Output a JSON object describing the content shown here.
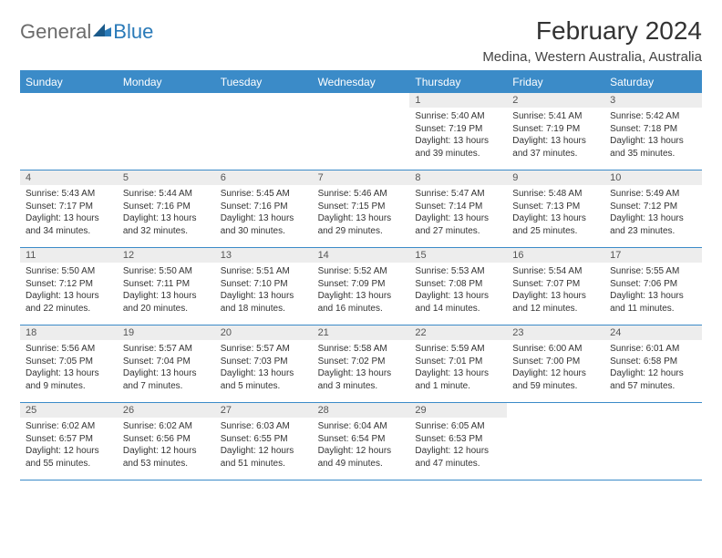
{
  "logo": {
    "general": "General",
    "blue": "Blue"
  },
  "title": "February 2024",
  "location": "Medina, Western Australia, Australia",
  "colors": {
    "header_bg": "#3b8bc8",
    "text": "#333333",
    "gray_bar": "#ededed",
    "white": "#ffffff"
  },
  "day_names": [
    "Sunday",
    "Monday",
    "Tuesday",
    "Wednesday",
    "Thursday",
    "Friday",
    "Saturday"
  ],
  "weeks": [
    [
      {
        "n": "",
        "sr": "",
        "ss": "",
        "dl": ""
      },
      {
        "n": "",
        "sr": "",
        "ss": "",
        "dl": ""
      },
      {
        "n": "",
        "sr": "",
        "ss": "",
        "dl": ""
      },
      {
        "n": "",
        "sr": "",
        "ss": "",
        "dl": ""
      },
      {
        "n": "1",
        "sr": "Sunrise: 5:40 AM",
        "ss": "Sunset: 7:19 PM",
        "dl": "Daylight: 13 hours and 39 minutes."
      },
      {
        "n": "2",
        "sr": "Sunrise: 5:41 AM",
        "ss": "Sunset: 7:19 PM",
        "dl": "Daylight: 13 hours and 37 minutes."
      },
      {
        "n": "3",
        "sr": "Sunrise: 5:42 AM",
        "ss": "Sunset: 7:18 PM",
        "dl": "Daylight: 13 hours and 35 minutes."
      }
    ],
    [
      {
        "n": "4",
        "sr": "Sunrise: 5:43 AM",
        "ss": "Sunset: 7:17 PM",
        "dl": "Daylight: 13 hours and 34 minutes."
      },
      {
        "n": "5",
        "sr": "Sunrise: 5:44 AM",
        "ss": "Sunset: 7:16 PM",
        "dl": "Daylight: 13 hours and 32 minutes."
      },
      {
        "n": "6",
        "sr": "Sunrise: 5:45 AM",
        "ss": "Sunset: 7:16 PM",
        "dl": "Daylight: 13 hours and 30 minutes."
      },
      {
        "n": "7",
        "sr": "Sunrise: 5:46 AM",
        "ss": "Sunset: 7:15 PM",
        "dl": "Daylight: 13 hours and 29 minutes."
      },
      {
        "n": "8",
        "sr": "Sunrise: 5:47 AM",
        "ss": "Sunset: 7:14 PM",
        "dl": "Daylight: 13 hours and 27 minutes."
      },
      {
        "n": "9",
        "sr": "Sunrise: 5:48 AM",
        "ss": "Sunset: 7:13 PM",
        "dl": "Daylight: 13 hours and 25 minutes."
      },
      {
        "n": "10",
        "sr": "Sunrise: 5:49 AM",
        "ss": "Sunset: 7:12 PM",
        "dl": "Daylight: 13 hours and 23 minutes."
      }
    ],
    [
      {
        "n": "11",
        "sr": "Sunrise: 5:50 AM",
        "ss": "Sunset: 7:12 PM",
        "dl": "Daylight: 13 hours and 22 minutes."
      },
      {
        "n": "12",
        "sr": "Sunrise: 5:50 AM",
        "ss": "Sunset: 7:11 PM",
        "dl": "Daylight: 13 hours and 20 minutes."
      },
      {
        "n": "13",
        "sr": "Sunrise: 5:51 AM",
        "ss": "Sunset: 7:10 PM",
        "dl": "Daylight: 13 hours and 18 minutes."
      },
      {
        "n": "14",
        "sr": "Sunrise: 5:52 AM",
        "ss": "Sunset: 7:09 PM",
        "dl": "Daylight: 13 hours and 16 minutes."
      },
      {
        "n": "15",
        "sr": "Sunrise: 5:53 AM",
        "ss": "Sunset: 7:08 PM",
        "dl": "Daylight: 13 hours and 14 minutes."
      },
      {
        "n": "16",
        "sr": "Sunrise: 5:54 AM",
        "ss": "Sunset: 7:07 PM",
        "dl": "Daylight: 13 hours and 12 minutes."
      },
      {
        "n": "17",
        "sr": "Sunrise: 5:55 AM",
        "ss": "Sunset: 7:06 PM",
        "dl": "Daylight: 13 hours and 11 minutes."
      }
    ],
    [
      {
        "n": "18",
        "sr": "Sunrise: 5:56 AM",
        "ss": "Sunset: 7:05 PM",
        "dl": "Daylight: 13 hours and 9 minutes."
      },
      {
        "n": "19",
        "sr": "Sunrise: 5:57 AM",
        "ss": "Sunset: 7:04 PM",
        "dl": "Daylight: 13 hours and 7 minutes."
      },
      {
        "n": "20",
        "sr": "Sunrise: 5:57 AM",
        "ss": "Sunset: 7:03 PM",
        "dl": "Daylight: 13 hours and 5 minutes."
      },
      {
        "n": "21",
        "sr": "Sunrise: 5:58 AM",
        "ss": "Sunset: 7:02 PM",
        "dl": "Daylight: 13 hours and 3 minutes."
      },
      {
        "n": "22",
        "sr": "Sunrise: 5:59 AM",
        "ss": "Sunset: 7:01 PM",
        "dl": "Daylight: 13 hours and 1 minute."
      },
      {
        "n": "23",
        "sr": "Sunrise: 6:00 AM",
        "ss": "Sunset: 7:00 PM",
        "dl": "Daylight: 12 hours and 59 minutes."
      },
      {
        "n": "24",
        "sr": "Sunrise: 6:01 AM",
        "ss": "Sunset: 6:58 PM",
        "dl": "Daylight: 12 hours and 57 minutes."
      }
    ],
    [
      {
        "n": "25",
        "sr": "Sunrise: 6:02 AM",
        "ss": "Sunset: 6:57 PM",
        "dl": "Daylight: 12 hours and 55 minutes."
      },
      {
        "n": "26",
        "sr": "Sunrise: 6:02 AM",
        "ss": "Sunset: 6:56 PM",
        "dl": "Daylight: 12 hours and 53 minutes."
      },
      {
        "n": "27",
        "sr": "Sunrise: 6:03 AM",
        "ss": "Sunset: 6:55 PM",
        "dl": "Daylight: 12 hours and 51 minutes."
      },
      {
        "n": "28",
        "sr": "Sunrise: 6:04 AM",
        "ss": "Sunset: 6:54 PM",
        "dl": "Daylight: 12 hours and 49 minutes."
      },
      {
        "n": "29",
        "sr": "Sunrise: 6:05 AM",
        "ss": "Sunset: 6:53 PM",
        "dl": "Daylight: 12 hours and 47 minutes."
      },
      {
        "n": "",
        "sr": "",
        "ss": "",
        "dl": ""
      },
      {
        "n": "",
        "sr": "",
        "ss": "",
        "dl": ""
      }
    ]
  ]
}
